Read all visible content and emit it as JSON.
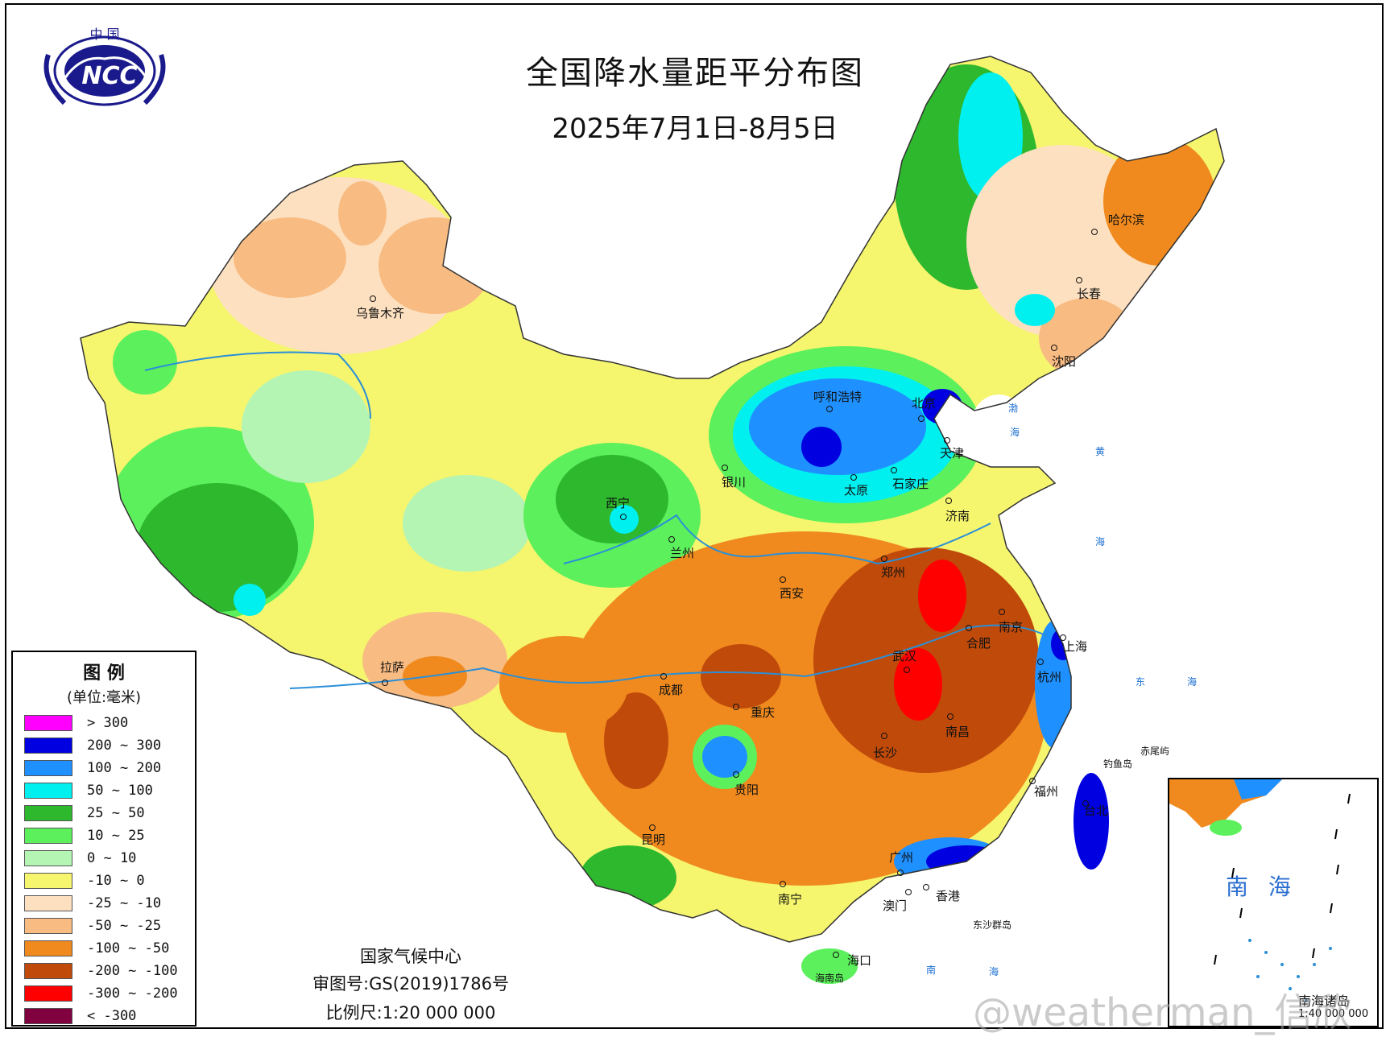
{
  "logo": {
    "top_text": "中 国",
    "acronym": "NCC"
  },
  "title": "全国降水量距平分布图",
  "subtitle": "2025年7月1日-8月5日",
  "legend": {
    "title": "图 例",
    "unit": "(单位:毫米)",
    "items": [
      {
        "label": "> 300",
        "color": "#ff00ff"
      },
      {
        "label": "200 ~ 300",
        "color": "#0000e0"
      },
      {
        "label": "100 ~ 200",
        "color": "#1e90ff"
      },
      {
        "label": "50 ~ 100",
        "color": "#00f0f0"
      },
      {
        "label": "25 ~ 50",
        "color": "#2eb82e"
      },
      {
        "label": "10 ~ 25",
        "color": "#5cf05c"
      },
      {
        "label": "0 ~ 10",
        "color": "#b4f5b4"
      },
      {
        "label": "-10 ~ 0",
        "color": "#f5f56e"
      },
      {
        "label": "-25 ~ -10",
        "color": "#fde0c0"
      },
      {
        "label": "-50 ~ -25",
        "color": "#f8bb82"
      },
      {
        "label": "-100 ~ -50",
        "color": "#f08a1e"
      },
      {
        "label": "-200 ~ -100",
        "color": "#c04a0a"
      },
      {
        "label": "-300 ~ -200",
        "color": "#ff0000"
      },
      {
        "label": "< -300",
        "color": "#800040"
      }
    ]
  },
  "credits": {
    "agency": "国家气候中心",
    "approval": "审图号:GS(2019)1786号",
    "scale": "比例尺:1:20 000 000"
  },
  "cities": [
    {
      "name": "乌鲁木齐"
    },
    {
      "name": "呼和浩特"
    },
    {
      "name": "北京"
    },
    {
      "name": "天津"
    },
    {
      "name": "哈尔滨"
    },
    {
      "name": "长春"
    },
    {
      "name": "沈阳"
    },
    {
      "name": "银川"
    },
    {
      "name": "太原"
    },
    {
      "name": "石家庄"
    },
    {
      "name": "西宁"
    },
    {
      "name": "兰州"
    },
    {
      "name": "济南"
    },
    {
      "name": "郑州"
    },
    {
      "name": "西安"
    },
    {
      "name": "拉萨"
    },
    {
      "name": "合肥"
    },
    {
      "name": "南京"
    },
    {
      "name": "上海"
    },
    {
      "name": "武汉"
    },
    {
      "name": "成都"
    },
    {
      "name": "重庆"
    },
    {
      "name": "杭州"
    },
    {
      "name": "南昌"
    },
    {
      "name": "长沙"
    },
    {
      "name": "贵阳"
    },
    {
      "name": "福州"
    },
    {
      "name": "台北"
    },
    {
      "name": "昆明"
    },
    {
      "name": "广州"
    },
    {
      "name": "南宁"
    },
    {
      "name": "香港"
    },
    {
      "name": "澳门"
    },
    {
      "name": "海口"
    }
  ],
  "seas": [
    "渤",
    "海",
    "黄",
    "海",
    "东",
    "海",
    "南",
    "海"
  ],
  "islands": [
    "钓鱼岛",
    "赤尾屿",
    "东沙群岛",
    "海南岛"
  ],
  "inset": {
    "title": "南 海",
    "label": "南海诸岛",
    "scale": "1:40 000 000"
  },
  "watermark": "@weatherman_信欣"
}
